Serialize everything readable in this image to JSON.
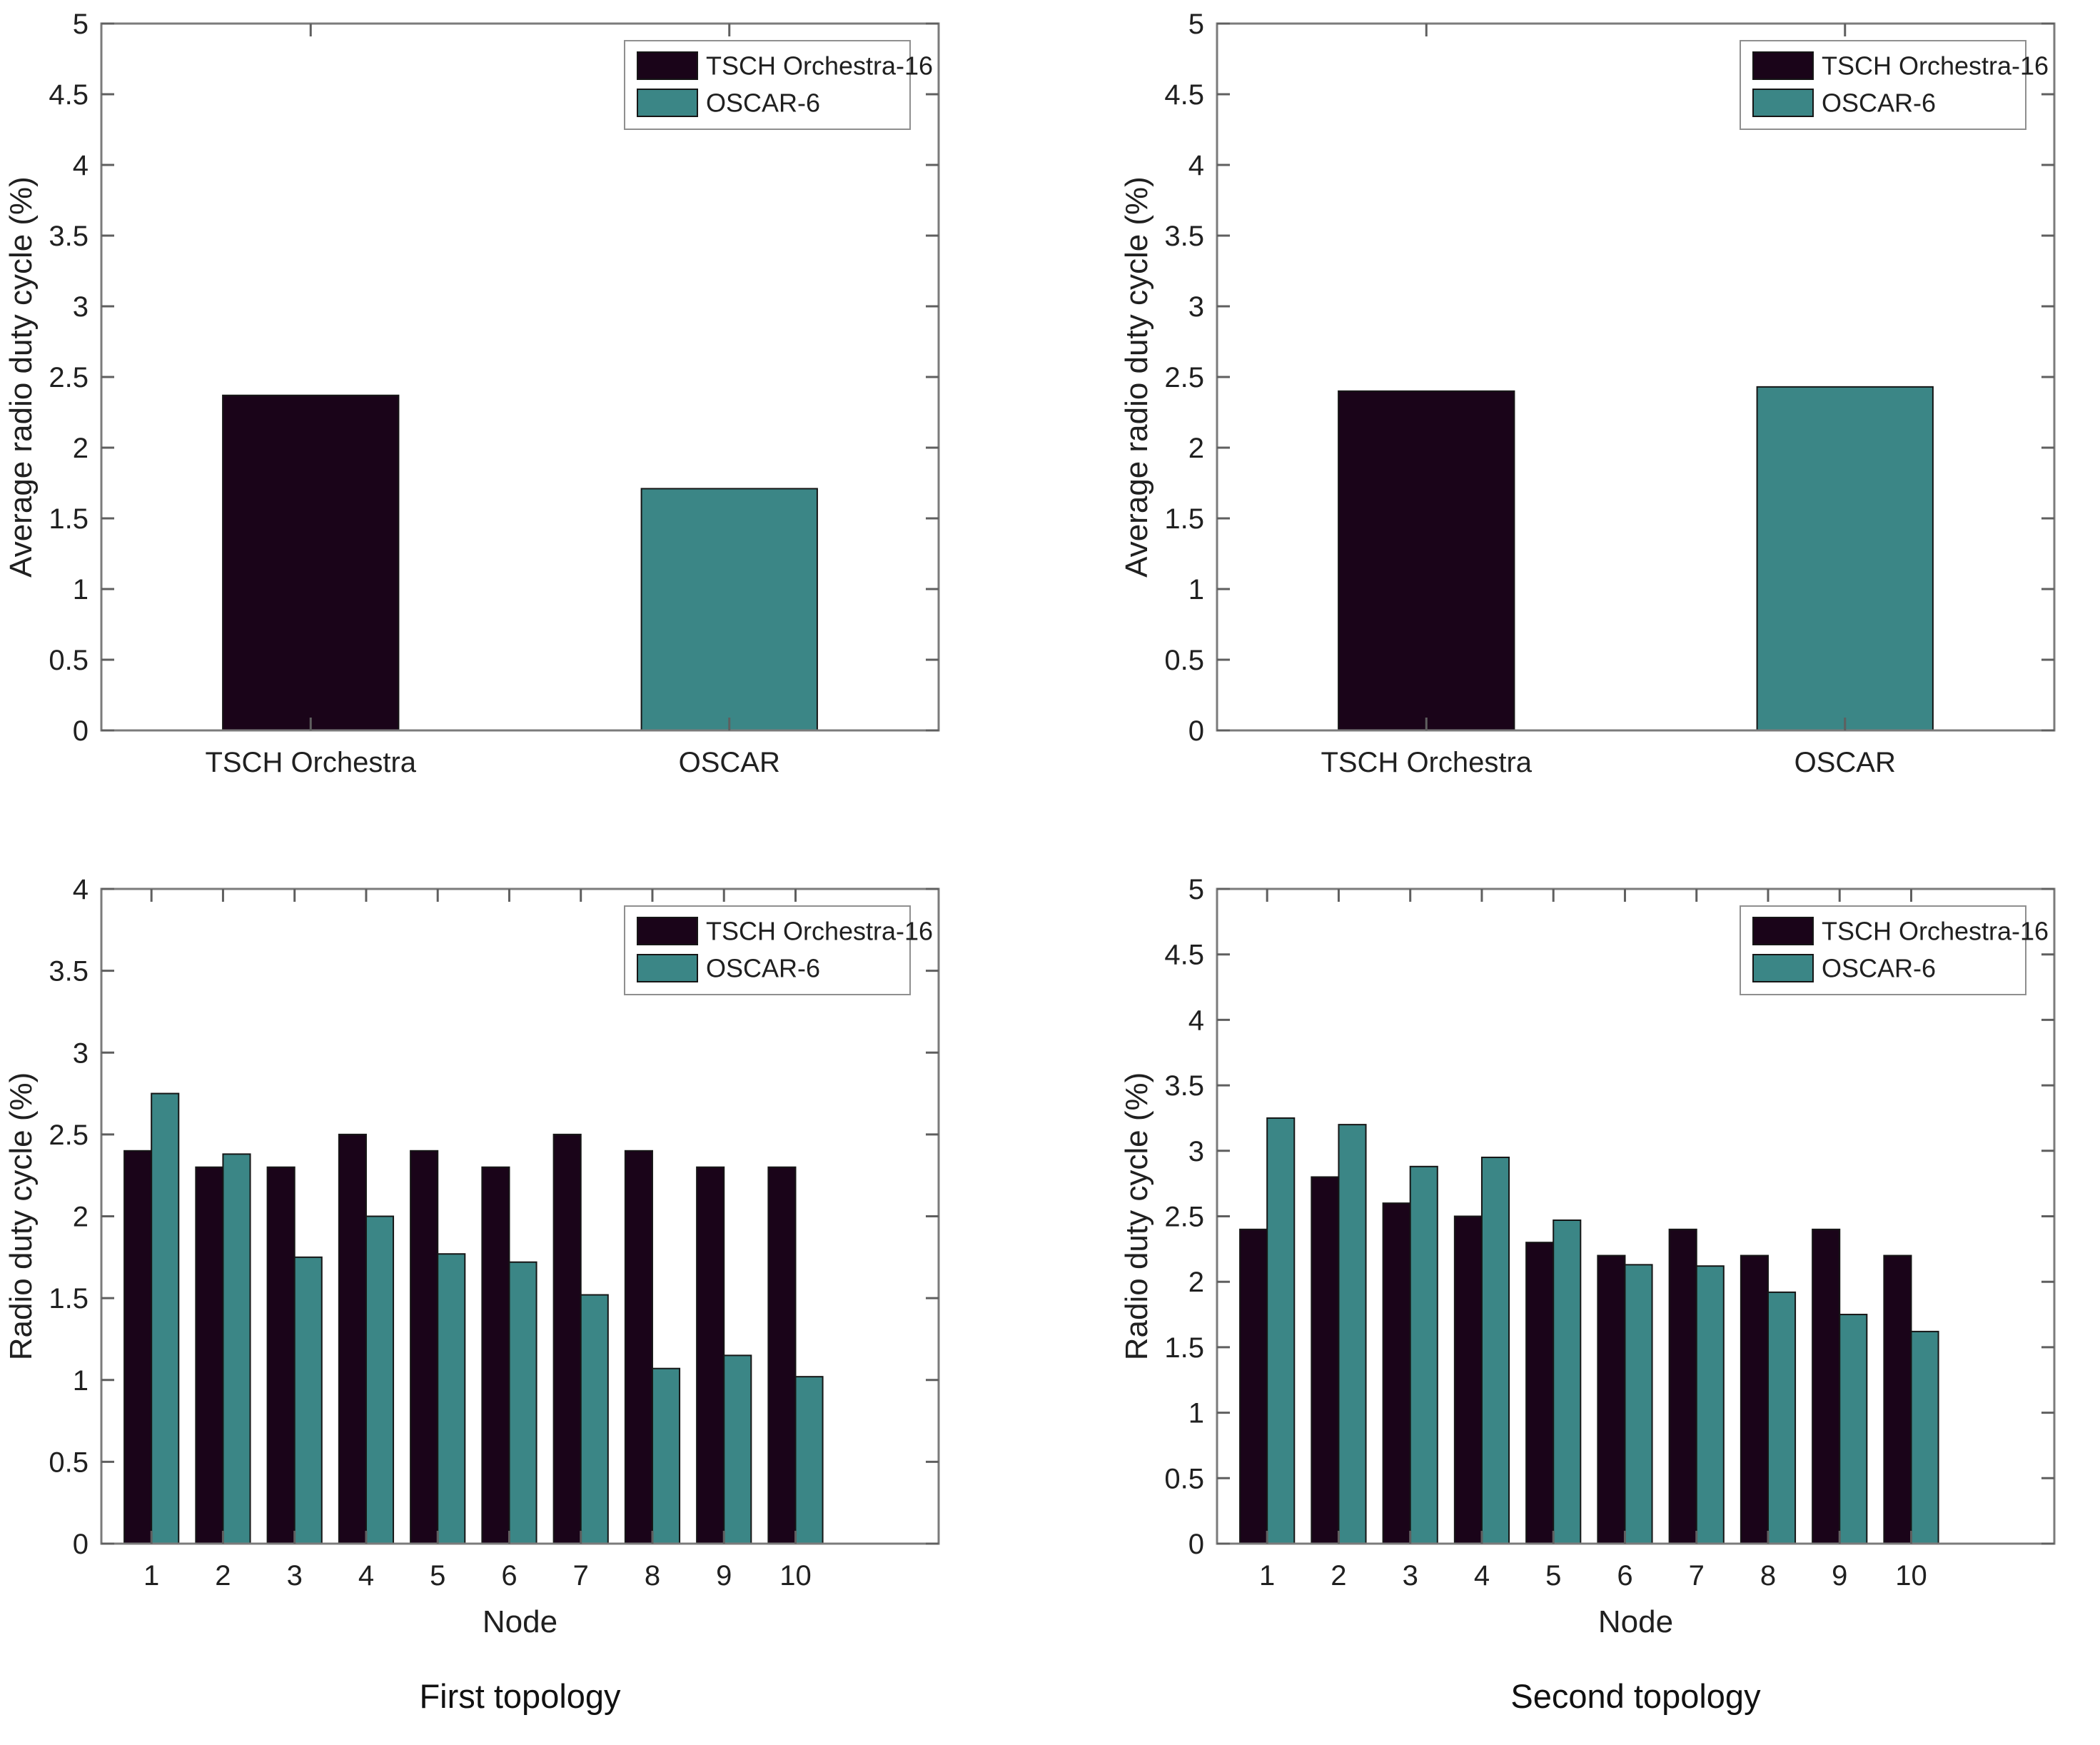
{
  "figure": {
    "background": "#ffffff",
    "series_colors": {
      "dark": "#1a0419",
      "teal": "#3b8686"
    },
    "legend": {
      "position": "top-right",
      "entries": [
        {
          "label": "TSCH Orchestra-16",
          "color_key": "dark"
        },
        {
          "label": "OSCAR-6",
          "color_key": "teal"
        }
      ]
    }
  },
  "chart_data": [
    {
      "id": "avg-duty-cycle-first-topology",
      "position": "top-left",
      "type": "bar",
      "title": "",
      "ylabel": "Average radio duty cycle (%)",
      "xlabel": "",
      "ylim": [
        0,
        5
      ],
      "ytick_step": 0.5,
      "grid": false,
      "legend_entries": [
        "TSCH Orchestra-16",
        "OSCAR-6"
      ],
      "categories": [
        "TSCH Orchestra",
        "OSCAR"
      ],
      "values": [
        2.37,
        1.71
      ],
      "bar_color_keys": [
        "dark",
        "teal"
      ]
    },
    {
      "id": "avg-duty-cycle-second-topology",
      "position": "top-right",
      "type": "bar",
      "title": "",
      "ylabel": "Average radio duty cycle (%)",
      "xlabel": "",
      "ylim": [
        0,
        5
      ],
      "ytick_step": 0.5,
      "grid": false,
      "legend_entries": [
        "TSCH Orchestra-16",
        "OSCAR-6"
      ],
      "categories": [
        "TSCH Orchestra",
        "OSCAR"
      ],
      "values": [
        2.4,
        2.43
      ],
      "bar_color_keys": [
        "dark",
        "teal"
      ]
    },
    {
      "id": "per-node-duty-cycle-first-topology",
      "position": "bottom-left",
      "type": "grouped-bar",
      "title": "",
      "caption": "First topology",
      "ylabel": "Radio duty cycle (%)",
      "xlabel": "Node",
      "ylim": [
        0,
        4
      ],
      "ytick_step": 0.5,
      "grid": false,
      "legend_entries": [
        "TSCH Orchestra-16",
        "OSCAR-6"
      ],
      "categories": [
        "1",
        "2",
        "3",
        "4",
        "5",
        "6",
        "7",
        "8",
        "9",
        "10"
      ],
      "series": [
        {
          "name": "TSCH Orchestra-16",
          "color_key": "dark",
          "values": [
            2.4,
            2.3,
            2.3,
            2.5,
            2.4,
            2.3,
            2.5,
            2.4,
            2.3,
            2.3
          ]
        },
        {
          "name": "OSCAR-6",
          "color_key": "teal",
          "values": [
            2.75,
            2.38,
            1.75,
            2.0,
            1.77,
            1.72,
            1.52,
            1.07,
            1.15,
            1.02
          ]
        }
      ]
    },
    {
      "id": "per-node-duty-cycle-second-topology",
      "position": "bottom-right",
      "type": "grouped-bar",
      "title": "",
      "caption": "Second topology",
      "ylabel": "Radio duty cycle (%)",
      "xlabel": "Node",
      "ylim": [
        0,
        5
      ],
      "ytick_step": 0.5,
      "grid": false,
      "legend_entries": [
        "TSCH Orchestra-16",
        "OSCAR-6"
      ],
      "categories": [
        "1",
        "2",
        "3",
        "4",
        "5",
        "6",
        "7",
        "8",
        "9",
        "10"
      ],
      "series": [
        {
          "name": "TSCH Orchestra-16",
          "color_key": "dark",
          "values": [
            2.4,
            2.8,
            2.6,
            2.5,
            2.3,
            2.2,
            2.4,
            2.2,
            2.4,
            2.2
          ]
        },
        {
          "name": "OSCAR-6",
          "color_key": "teal",
          "values": [
            3.25,
            3.2,
            2.88,
            2.95,
            2.47,
            2.13,
            2.12,
            1.92,
            1.75,
            1.62
          ]
        }
      ]
    }
  ]
}
